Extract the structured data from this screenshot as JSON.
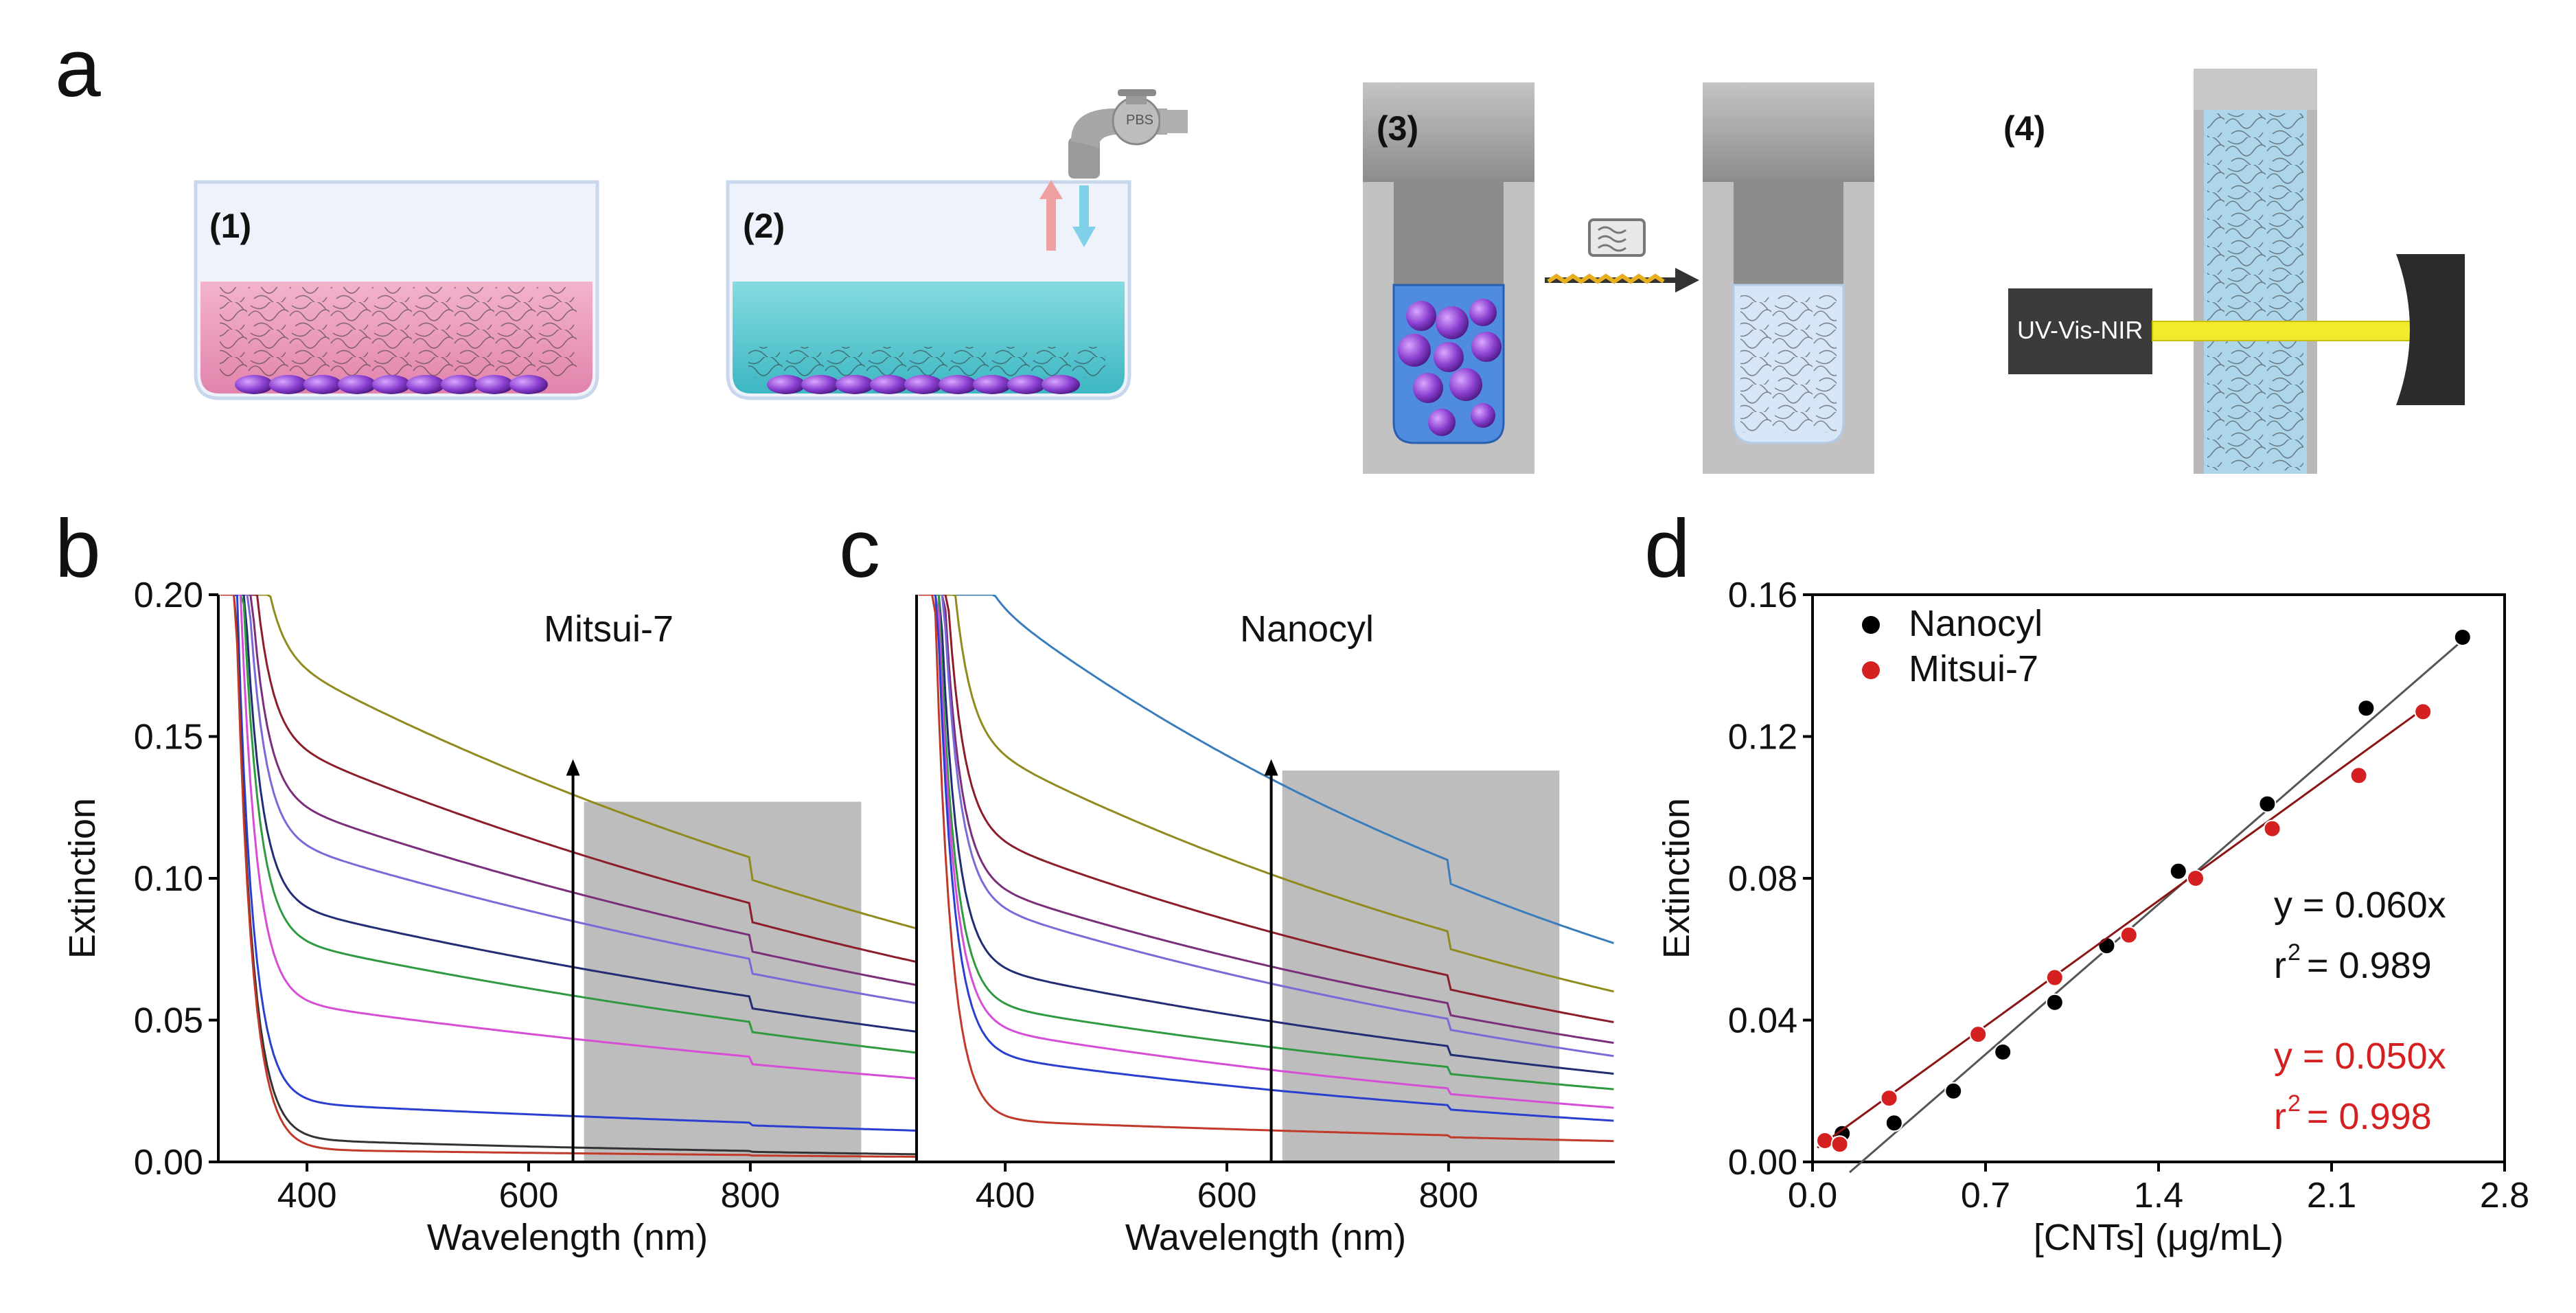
{
  "figure": {
    "panel_letters": {
      "a": "a",
      "b": "b",
      "c": "c",
      "d": "d"
    },
    "panel_a": {
      "step1": "(1)",
      "step2": "(2)",
      "step3": "(3)",
      "step4": "(4)",
      "faucet_label": "PBS",
      "device_label": "UV-Vis-NIR",
      "colors": {
        "pink": "#e89ab8",
        "cyan": "#6ccfd6",
        "purple": "#8a3fd0",
        "yellow": "#f2ea2a",
        "gray": "#b9b9b9"
      }
    }
  },
  "chart_data": [
    {
      "id": "b",
      "type": "line",
      "title": "Mitsui-7",
      "xlabel": "Wavelength (nm)",
      "ylabel": "Extinction",
      "xlim": [
        320,
        950
      ],
      "ylim": [
        0,
        0.2
      ],
      "xticks": [
        "400",
        "600",
        "800"
      ],
      "yticks": [
        "0.00",
        "0.05",
        "0.10",
        "0.15",
        "0.20"
      ],
      "shaded_range": {
        "x": [
          650,
          900
        ],
        "y": [
          0,
          0.127
        ]
      },
      "arrow": {
        "x": 640,
        "y": [
          0,
          0.142
        ]
      },
      "series": [
        {
          "color": "#8f8b1e",
          "at_650": 0.128,
          "at_950": 0.09
        },
        {
          "color": "#8b1e2a",
          "at_650": 0.108,
          "at_950": 0.077
        },
        {
          "color": "#7b2f7b",
          "at_650": 0.094,
          "at_950": 0.068
        },
        {
          "color": "#7a6ad8",
          "at_650": 0.084,
          "at_950": 0.061
        },
        {
          "color": "#232d74",
          "at_650": 0.068,
          "at_950": 0.05
        },
        {
          "color": "#2f9a40",
          "at_650": 0.058,
          "at_950": 0.042
        },
        {
          "color": "#d64dd6",
          "at_650": 0.043,
          "at_950": 0.032
        },
        {
          "color": "#2a3fcf",
          "at_650": 0.016,
          "at_950": 0.012
        },
        {
          "color": "#333333",
          "at_650": 0.005,
          "at_950": 0.003
        },
        {
          "color": "#c0392b",
          "at_650": 0.003,
          "at_950": 0.002
        }
      ]
    },
    {
      "id": "c",
      "type": "line",
      "title": "Nanocyl",
      "xlabel": "Wavelength (nm)",
      "ylabel": "",
      "xlim": [
        320,
        950
      ],
      "ylim": [
        0,
        0.2
      ],
      "xticks": [
        "400",
        "600",
        "800"
      ],
      "shaded_range": {
        "x": [
          650,
          900
        ],
        "y": [
          0,
          0.138
        ]
      },
      "arrow": {
        "x": 640,
        "y": [
          0,
          0.142
        ]
      },
      "series": [
        {
          "color": "#3a7dbd",
          "at_650": 0.133,
          "at_950": 0.085
        },
        {
          "color": "#8f8b1e",
          "at_650": 0.1,
          "at_950": 0.066
        },
        {
          "color": "#8b1e2a",
          "at_650": 0.08,
          "at_950": 0.054
        },
        {
          "color": "#7b2f7b",
          "at_650": 0.068,
          "at_950": 0.046
        },
        {
          "color": "#7a6ad8",
          "at_650": 0.062,
          "at_950": 0.041
        },
        {
          "color": "#232d74",
          "at_650": 0.049,
          "at_950": 0.034
        },
        {
          "color": "#2f9a40",
          "at_650": 0.04,
          "at_950": 0.028
        },
        {
          "color": "#d64dd6",
          "at_650": 0.032,
          "at_950": 0.021
        },
        {
          "color": "#2a3fcf",
          "at_650": 0.025,
          "at_950": 0.016
        },
        {
          "color": "#c0392b",
          "at_650": 0.011,
          "at_950": 0.008
        }
      ]
    },
    {
      "id": "d",
      "type": "scatter",
      "xlabel": "[CNTs] (μg/mL)",
      "ylabel": "Extinction",
      "xlim": [
        0,
        2.8
      ],
      "ylim": [
        0,
        0.16
      ],
      "xticks": [
        "0.0",
        "0.7",
        "1.4",
        "2.1",
        "2.8"
      ],
      "yticks": [
        "0.00",
        "0.04",
        "0.08",
        "0.12",
        "0.16"
      ],
      "legend_position": "top-left",
      "series": [
        {
          "name": "Nanocyl",
          "color": "#000000",
          "x": [
            0.12,
            0.33,
            0.57,
            0.77,
            0.98,
            1.19,
            1.48,
            1.84,
            2.24,
            2.63
          ],
          "y": [
            0.008,
            0.011,
            0.02,
            0.031,
            0.045,
            0.061,
            0.082,
            0.101,
            0.128,
            0.148
          ],
          "fit": "y = 0.060x",
          "r2": "= 0.989"
        },
        {
          "name": "Mitsui-7",
          "color": "#d42020",
          "x": [
            0.05,
            0.11,
            0.31,
            0.67,
            0.98,
            1.28,
            1.55,
            1.86,
            2.21,
            2.47
          ],
          "y": [
            0.006,
            0.005,
            0.018,
            0.036,
            0.052,
            0.064,
            0.08,
            0.094,
            0.109,
            0.127
          ],
          "fit": "y = 0.050x",
          "r2": "= 0.998"
        }
      ]
    }
  ]
}
